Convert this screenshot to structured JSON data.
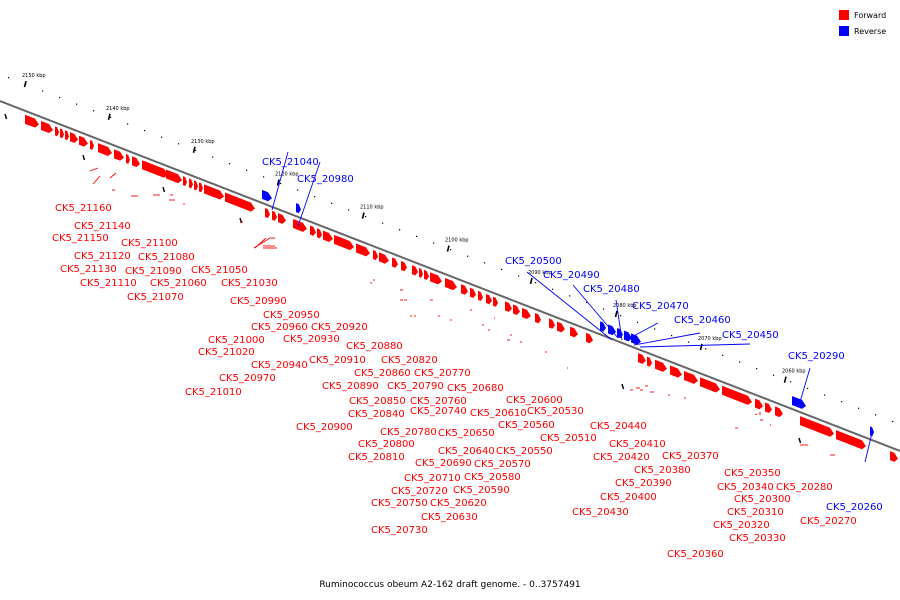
{
  "caption": "Ruminococcus obeum A2-162 draft genome. - 0..3757491",
  "colors": {
    "forward": "#ff0000",
    "reverse": "#0000ff",
    "backbone": "#666666",
    "tick": "#000000"
  },
  "legend": [
    {
      "label": "Forward",
      "strand": "forward"
    },
    {
      "label": "Reverse",
      "strand": "reverse"
    }
  ],
  "scale_labels": [
    "2150 kbp",
    "2140 kbp",
    "2130 kbp",
    "2120 kbp",
    "2110 kbp",
    "2100 kbp",
    "2090 kbp",
    "2080 kbp",
    "2070 kbp",
    "2060 kbp"
  ],
  "gene_labels": [
    {
      "text": "CK5_21160",
      "strand": "forward"
    },
    {
      "text": "CK5_21140",
      "strand": "forward"
    },
    {
      "text": "CK5_21150",
      "strand": "forward"
    },
    {
      "text": "CK5_21120",
      "strand": "forward"
    },
    {
      "text": "CK5_21100",
      "strand": "forward"
    },
    {
      "text": "CK5_21130",
      "strand": "forward"
    },
    {
      "text": "CK5_21080",
      "strand": "forward"
    },
    {
      "text": "CK5_21090",
      "strand": "forward"
    },
    {
      "text": "CK5_21050",
      "strand": "forward"
    },
    {
      "text": "CK5_21110",
      "strand": "forward"
    },
    {
      "text": "CK5_21060",
      "strand": "forward"
    },
    {
      "text": "CK5_21030",
      "strand": "forward"
    },
    {
      "text": "CK5_21070",
      "strand": "forward"
    },
    {
      "text": "CK5_20990",
      "strand": "forward"
    },
    {
      "text": "CK5_20950",
      "strand": "forward"
    },
    {
      "text": "CK5_20960",
      "strand": "forward"
    },
    {
      "text": "CK5_20920",
      "strand": "forward"
    },
    {
      "text": "CK5_20930",
      "strand": "forward"
    },
    {
      "text": "CK5_21000",
      "strand": "forward"
    },
    {
      "text": "CK5_21020",
      "strand": "forward"
    },
    {
      "text": "CK5_20910",
      "strand": "forward"
    },
    {
      "text": "CK5_20880",
      "strand": "forward"
    },
    {
      "text": "CK5_20940",
      "strand": "forward"
    },
    {
      "text": "CK5_20820",
      "strand": "forward"
    },
    {
      "text": "CK5_20860",
      "strand": "forward"
    },
    {
      "text": "CK5_20770",
      "strand": "forward"
    },
    {
      "text": "CK5_20970",
      "strand": "forward"
    },
    {
      "text": "CK5_20890",
      "strand": "forward"
    },
    {
      "text": "CK5_20790",
      "strand": "forward"
    },
    {
      "text": "CK5_20680",
      "strand": "forward"
    },
    {
      "text": "CK5_21010",
      "strand": "forward"
    },
    {
      "text": "CK5_20850",
      "strand": "forward"
    },
    {
      "text": "CK5_20760",
      "strand": "forward"
    },
    {
      "text": "CK5_20600",
      "strand": "forward"
    },
    {
      "text": "CK5_20840",
      "strand": "forward"
    },
    {
      "text": "CK5_20740",
      "strand": "forward"
    },
    {
      "text": "CK5_20610",
      "strand": "forward"
    },
    {
      "text": "CK5_20530",
      "strand": "forward"
    },
    {
      "text": "CK5_20900",
      "strand": "forward"
    },
    {
      "text": "CK5_20780",
      "strand": "forward"
    },
    {
      "text": "CK5_20650",
      "strand": "forward"
    },
    {
      "text": "CK5_20560",
      "strand": "forward"
    },
    {
      "text": "CK5_20800",
      "strand": "forward"
    },
    {
      "text": "CK5_20640",
      "strand": "forward"
    },
    {
      "text": "CK5_20550",
      "strand": "forward"
    },
    {
      "text": "CK5_20510",
      "strand": "forward"
    },
    {
      "text": "CK5_20810",
      "strand": "forward"
    },
    {
      "text": "CK5_20690",
      "strand": "forward"
    },
    {
      "text": "CK5_20570",
      "strand": "forward"
    },
    {
      "text": "CK5_20710",
      "strand": "forward"
    },
    {
      "text": "CK5_20580",
      "strand": "forward"
    },
    {
      "text": "CK5_20720",
      "strand": "forward"
    },
    {
      "text": "CK5_20590",
      "strand": "forward"
    },
    {
      "text": "CK5_20750",
      "strand": "forward"
    },
    {
      "text": "CK5_20620",
      "strand": "forward"
    },
    {
      "text": "CK5_20630",
      "strand": "forward"
    },
    {
      "text": "CK5_20730",
      "strand": "forward"
    },
    {
      "text": "CK5_20440",
      "strand": "forward"
    },
    {
      "text": "CK5_20410",
      "strand": "forward"
    },
    {
      "text": "CK5_20420",
      "strand": "forward"
    },
    {
      "text": "CK5_20370",
      "strand": "forward"
    },
    {
      "text": "CK5_20380",
      "strand": "forward"
    },
    {
      "text": "CK5_20390",
      "strand": "forward"
    },
    {
      "text": "CK5_20400",
      "strand": "forward"
    },
    {
      "text": "CK5_20430",
      "strand": "forward"
    },
    {
      "text": "CK5_20350",
      "strand": "forward"
    },
    {
      "text": "CK5_20340",
      "strand": "forward"
    },
    {
      "text": "CK5_20280",
      "strand": "forward"
    },
    {
      "text": "CK5_20300",
      "strand": "forward"
    },
    {
      "text": "CK5_20310",
      "strand": "forward"
    },
    {
      "text": "CK5_20320",
      "strand": "forward"
    },
    {
      "text": "CK5_20330",
      "strand": "forward"
    },
    {
      "text": "CK5_20360",
      "strand": "forward"
    },
    {
      "text": "CK5_20270",
      "strand": "forward"
    },
    {
      "text": "CK5_21040",
      "strand": "reverse"
    },
    {
      "text": "CK5_20980",
      "strand": "reverse"
    },
    {
      "text": "CK5_20500",
      "strand": "reverse"
    },
    {
      "text": "CK5_20490",
      "strand": "reverse"
    },
    {
      "text": "CK5_20480",
      "strand": "reverse"
    },
    {
      "text": "CK5_20470",
      "strand": "reverse"
    },
    {
      "text": "CK5_20460",
      "strand": "reverse"
    },
    {
      "text": "CK5_20450",
      "strand": "reverse"
    },
    {
      "text": "CK5_20290",
      "strand": "reverse"
    },
    {
      "text": "CK5_20260",
      "strand": "reverse"
    }
  ]
}
